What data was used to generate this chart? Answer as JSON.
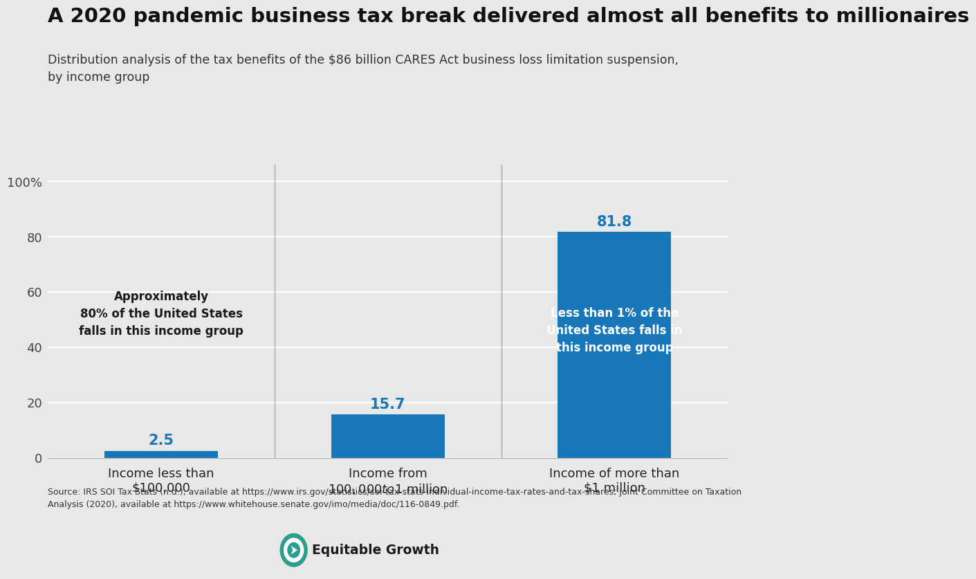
{
  "title": "A 2020 pandemic business tax break delivered almost all benefits to millionaires",
  "subtitle": "Distribution analysis of the tax benefits of the $86 billion CARES Act business loss limitation suspension,\nby income group",
  "categories": [
    "Income less than\n$100,000",
    "Income from\n$100,000 to $1 million",
    "Income of more than\n$1 million"
  ],
  "values": [
    2.5,
    15.7,
    81.8
  ],
  "bar_color": "#1877b8",
  "background_color": "#e8e8e8",
  "value_label_color_outside": "#1877b8",
  "value_label_color_inside": "#ffffff",
  "ylim": [
    0,
    106
  ],
  "yticks": [
    0,
    20,
    40,
    60,
    80,
    100
  ],
  "yticklabels": [
    "0",
    "20",
    "40",
    "60",
    "80",
    "100%"
  ],
  "annotation_bar1": "Approximately\n80% of the United States\nfalls in this income group",
  "annotation_bar3": "Less than 1% of the\nUnited States falls in\nthis income group",
  "source_text": "Source: IRS SOI Tax Stats (n.d.), available at https://www.irs.gov/statistics/soi-tax-stats-individual-income-tax-rates-and-tax-shares; Joint Committee on Taxation\nAnalysis (2020), available at https://www.whitehouse.senate.gov/imo/media/doc/116-0849.pdf.",
  "logo_text": "Equitable Growth",
  "title_fontsize": 21,
  "subtitle_fontsize": 12.5,
  "bar_value_fontsize": 15,
  "annotation_fontsize": 12,
  "axis_fontsize": 13,
  "source_fontsize": 9
}
